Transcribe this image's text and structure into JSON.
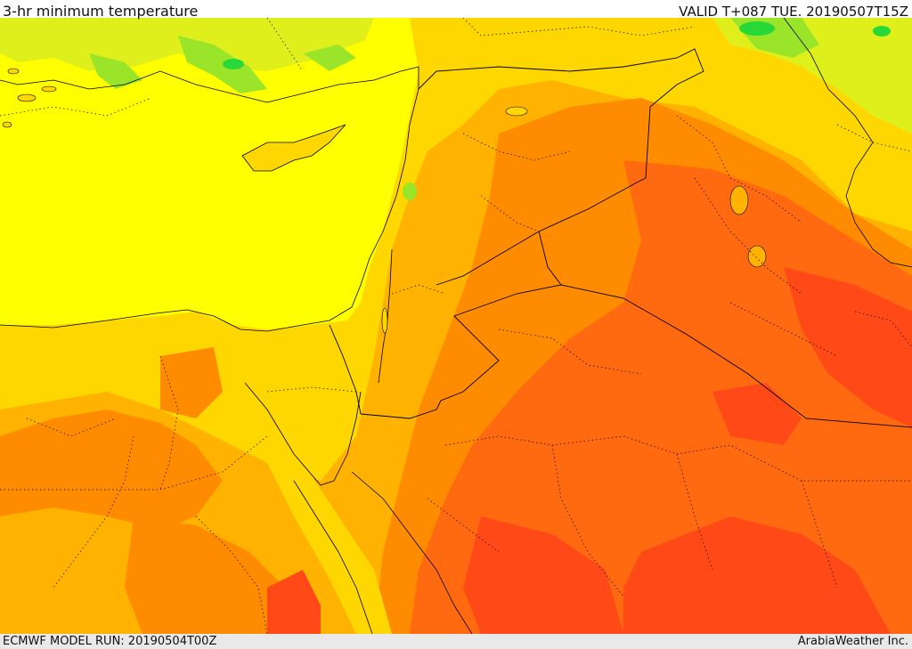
{
  "header": {
    "title": "3-hr minimum temperature",
    "valid": "VALID T+087 TUE. 20190507T15Z"
  },
  "footer": {
    "model_run": "ECMWF MODEL RUN: 20190504T00Z",
    "credit": "ArabiaWeather Inc."
  },
  "map": {
    "region": "Eastern Mediterranean, Levant, Iraq, northern Arabia, Egypt",
    "field": "3-hr minimum temperature",
    "color_scale": {
      "cool": "#28d838",
      "cool_light": "#9ae42a",
      "yellow_green": "#dfef1c",
      "yellow": "#ffff00",
      "gold": "#ffd700",
      "amber": "#ffb300",
      "orange": "#ff8c00",
      "dark_orange": "#ff6a10",
      "red_orange": "#ff4a18"
    },
    "boundary_color": "#000000"
  }
}
